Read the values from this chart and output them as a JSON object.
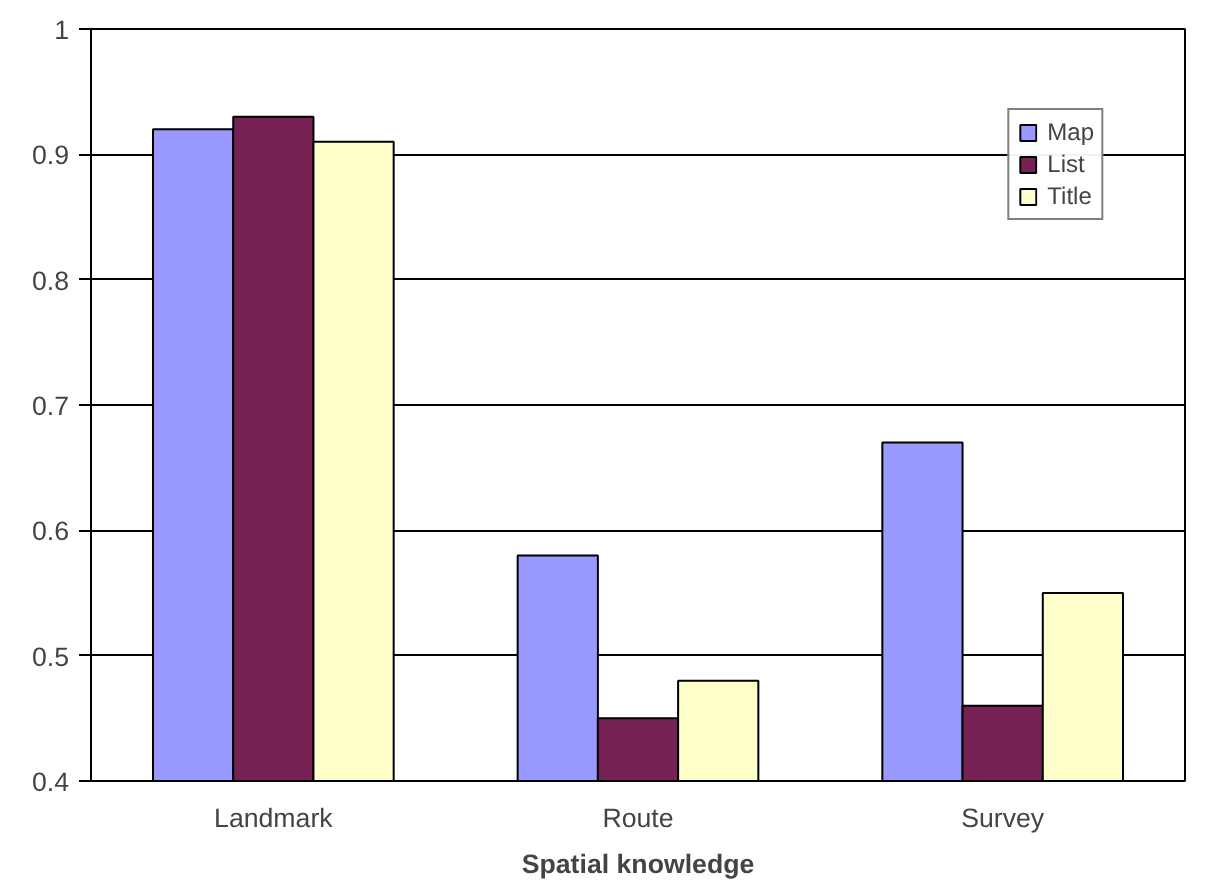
{
  "chart_data": {
    "type": "bar",
    "xlabel": "Spatial knowledge",
    "categories": [
      "Landmark",
      "Route",
      "Survey"
    ],
    "series": [
      {
        "name": "Map",
        "color": "#9999ff",
        "values": [
          0.92,
          0.58,
          0.67
        ]
      },
      {
        "name": "List",
        "color": "#772255",
        "values": [
          0.93,
          0.45,
          0.46
        ]
      },
      {
        "name": "Title",
        "color": "#ffffcc",
        "values": [
          0.91,
          0.48,
          0.55
        ]
      }
    ],
    "ylim": [
      0.4,
      1
    ],
    "yticks": [
      0.4,
      0.5,
      0.6,
      0.7,
      0.8,
      0.9,
      1
    ],
    "grid": "y",
    "legend": "top right"
  }
}
